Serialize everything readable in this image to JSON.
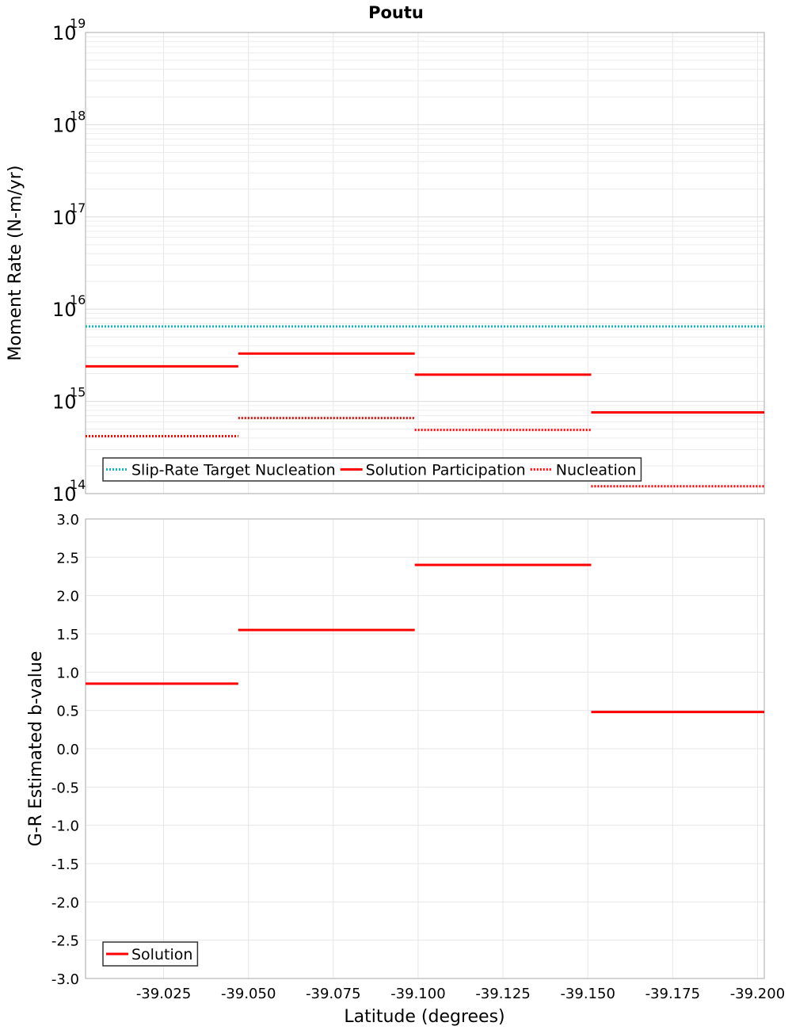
{
  "title": "Poutu",
  "chart_data": [
    {
      "type": "line",
      "ylabel": "Moment Rate (N-m/yr)",
      "yscale": "log",
      "ylim": [
        100000000000000.0,
        1e+19
      ],
      "ytick_labels": [
        {
          "base": "10",
          "exp": "14"
        },
        {
          "base": "10",
          "exp": "15"
        },
        {
          "base": "10",
          "exp": "16"
        },
        {
          "base": "10",
          "exp": "17"
        },
        {
          "base": "10",
          "exp": "18"
        },
        {
          "base": "10",
          "exp": "19"
        }
      ],
      "grid": true,
      "legend_position": "bottom-left",
      "series": [
        {
          "name": "Slip-Rate Target Nucleation",
          "color": "#17b3be",
          "style": "dotted",
          "segments": [
            {
              "x": [
                -39.002,
                -39.202
              ],
              "y": 6500000000000000.0
            }
          ]
        },
        {
          "name": "Solution Participation",
          "color": "#ff0000",
          "style": "solid",
          "segments": [
            {
              "x": [
                -39.002,
                -39.047
              ],
              "y": 2400000000000000.0
            },
            {
              "x": [
                -39.047,
                -39.099
              ],
              "y": 3300000000000000.0
            },
            {
              "x": [
                -39.099,
                -39.151
              ],
              "y": 1950000000000000.0
            },
            {
              "x": [
                -39.151,
                -39.202
              ],
              "y": 760000000000000.0
            }
          ]
        },
        {
          "name": "Nucleation",
          "color": "#ff0000",
          "style": "dotted",
          "segments": [
            {
              "x": [
                -39.002,
                -39.047
              ],
              "y": 420000000000000.0
            },
            {
              "x": [
                -39.047,
                -39.099
              ],
              "y": 660000000000000.0
            },
            {
              "x": [
                -39.099,
                -39.151
              ],
              "y": 490000000000000.0
            },
            {
              "x": [
                -39.151,
                -39.202
              ],
              "y": 120000000000000.0
            }
          ]
        }
      ]
    },
    {
      "type": "line",
      "ylabel": "G-R Estimated b-value",
      "xlabel": "Latitude (degrees)",
      "ylim": [
        -3.0,
        3.0
      ],
      "yticks": [
        "3.0",
        "2.5",
        "2.0",
        "1.5",
        "1.0",
        "0.5",
        "0.0",
        "-0.5",
        "-1.0",
        "-1.5",
        "-2.0",
        "-2.5",
        "-3.0"
      ],
      "xlim": [
        -39.002,
        -39.202
      ],
      "xticks": [
        "-39.025",
        "-39.050",
        "-39.075",
        "-39.100",
        "-39.125",
        "-39.150",
        "-39.175",
        "-39.200"
      ],
      "grid": true,
      "legend_position": "bottom-left",
      "series": [
        {
          "name": "Solution",
          "color": "#ff0000",
          "style": "solid",
          "segments": [
            {
              "x": [
                -39.002,
                -39.047
              ],
              "y": 0.85
            },
            {
              "x": [
                -39.047,
                -39.099
              ],
              "y": 1.55
            },
            {
              "x": [
                -39.099,
                -39.151
              ],
              "y": 2.4
            },
            {
              "x": [
                -39.151,
                -39.202
              ],
              "y": 0.48
            }
          ]
        }
      ]
    }
  ]
}
